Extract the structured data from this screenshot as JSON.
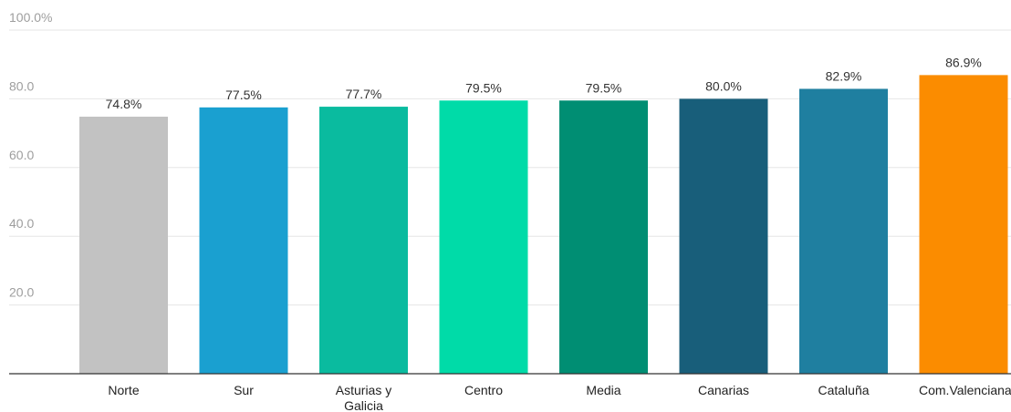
{
  "chart_data": {
    "type": "bar",
    "categories": [
      [
        "Norte"
      ],
      [
        "Sur"
      ],
      [
        "Asturias y",
        "Galicia"
      ],
      [
        "Centro"
      ],
      [
        "Media"
      ],
      [
        "Canarias"
      ],
      [
        "Cataluña"
      ],
      [
        "Com.Valenciana"
      ]
    ],
    "values": [
      74.8,
      77.5,
      77.7,
      79.5,
      79.5,
      80.0,
      82.9,
      86.9
    ],
    "data_labels": [
      "74.8%",
      "77.5%",
      "77.7%",
      "79.5%",
      "79.5%",
      "80.0%",
      "82.9%",
      "86.9%"
    ],
    "colors": [
      "#c2c2c2",
      "#1aa0d0",
      "#0abb9f",
      "#00dba8",
      "#008e73",
      "#185e7a",
      "#1f7fa0",
      "#fb8c00"
    ],
    "ylim": [
      0,
      100
    ],
    "yticks": [
      {
        "value": 20,
        "label": "20.0"
      },
      {
        "value": 40,
        "label": "40.0"
      },
      {
        "value": 60,
        "label": "60.0"
      },
      {
        "value": 80,
        "label": "80.0"
      },
      {
        "value": 100,
        "label": "100.0%"
      }
    ],
    "grid": true,
    "title": "",
    "xlabel": "",
    "ylabel": ""
  }
}
